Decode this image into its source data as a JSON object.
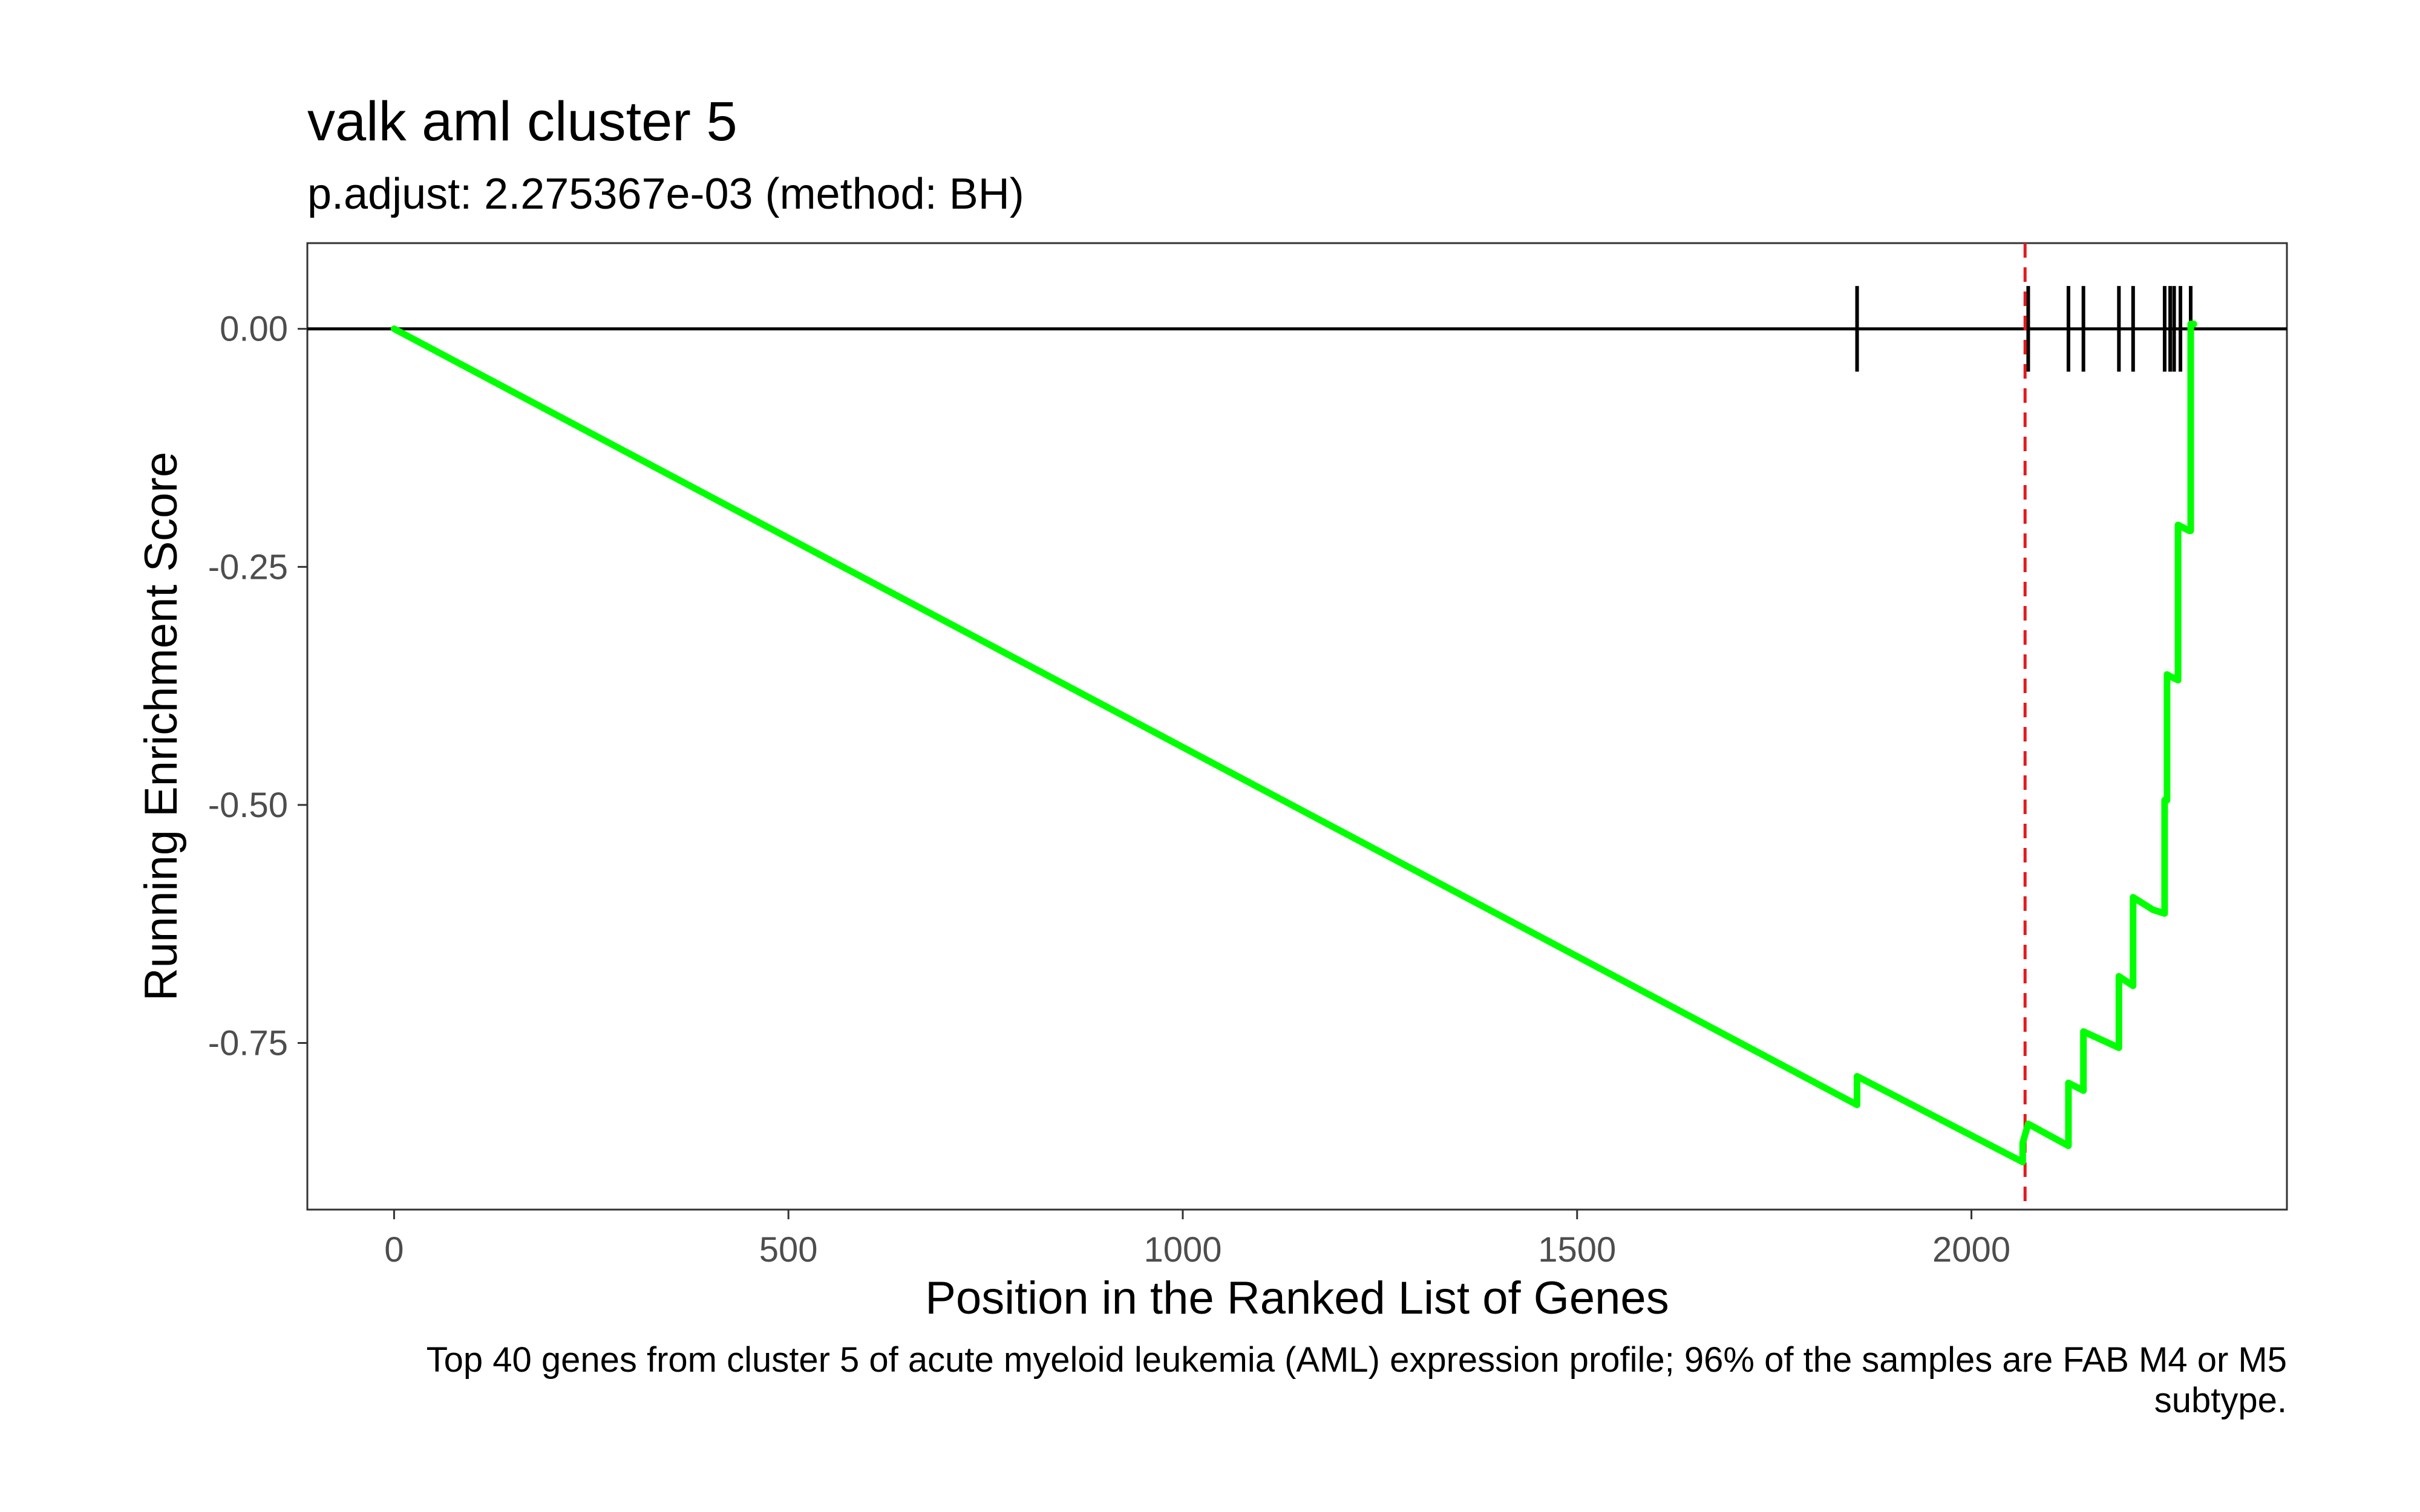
{
  "chart_data": {
    "type": "line",
    "title": "valk aml cluster 5",
    "subtitle": "p.adjust: 2.275367e-03 (method: BH)",
    "xlabel": "Position in the Ranked List of Genes",
    "ylabel": "Running Enrichment Score",
    "caption": {
      "line1": "Top 40 genes from cluster 5 of acute myeloid leukemia (AML) expression profile; 96% of the samples are FAB M4 or M5",
      "line2": "subtype."
    },
    "xlim": [
      -110,
      2400
    ],
    "ylim": [
      -0.925,
      0.09
    ],
    "x_ticks": [
      0,
      500,
      1000,
      1500,
      2000
    ],
    "x_tick_labels": [
      "0",
      "500",
      "1000",
      "1500",
      "2000"
    ],
    "y_ticks": [
      0,
      -0.25,
      -0.5,
      -0.75
    ],
    "y_tick_labels": [
      "0.00",
      "-0.25",
      "-0.50",
      "-0.75"
    ],
    "grid": false,
    "series": [
      {
        "color": "#00ff00",
        "x": [
          0,
          1855,
          1855,
          2065,
          2065,
          2072,
          2072,
          2123,
          2123,
          2142,
          2142,
          2187,
          2187,
          2205,
          2205,
          2230,
          2230,
          2245,
          2245,
          2248,
          2248,
          2252,
          2252,
          2262,
          2262,
          2276,
          2276,
          2278,
          2278,
          2282
        ],
        "y": [
          0,
          -0.815,
          -0.785,
          -0.875,
          -0.855,
          -0.835,
          -0.835,
          -0.858,
          -0.792,
          -0.8,
          -0.738,
          -0.755,
          -0.68,
          -0.69,
          -0.597,
          -0.61,
          -0.61,
          -0.614,
          -0.495,
          -0.495,
          -0.363,
          -0.365,
          -0.365,
          -0.369,
          -0.206,
          -0.212,
          -0.212,
          -0.212,
          0.005,
          0.005
        ]
      }
    ],
    "gene_hits": [
      1855,
      2072,
      2123,
      2142,
      2187,
      2205,
      2245,
      2252,
      2257,
      2265,
      2278
    ],
    "zero_line": 0,
    "max_deviation_x": 2068,
    "max_deviation_color": "#e41a1c"
  }
}
